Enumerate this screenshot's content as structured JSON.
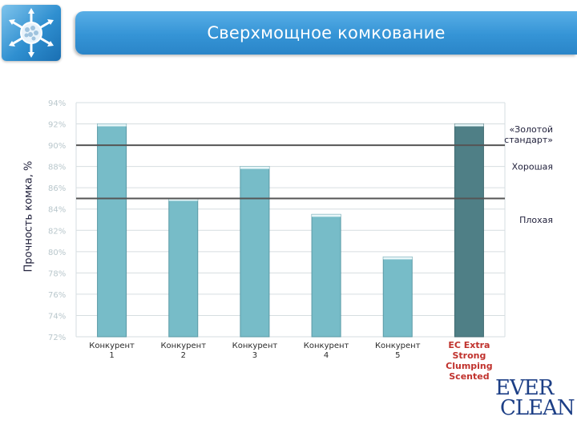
{
  "header": {
    "title": "Сверхмощное комкование",
    "logo_icon": "snowflake-molecule-icon"
  },
  "brand": {
    "line1": "EVER",
    "line2": "CLEAN"
  },
  "colors": {
    "title_bar": "#3594d6",
    "bar": "#77bcc8",
    "bar_highlight": "#4f7f86",
    "reference_line": "#555555",
    "tick_label": "#b9c7cc",
    "category_label": "#2b2b2b",
    "highlight_label": "#c0322d"
  },
  "chart_data": {
    "type": "bar",
    "ylabel": "Прочность комка, %",
    "xlabel": "",
    "ylim": [
      72,
      94
    ],
    "y_ticks": [
      "72%",
      "74%",
      "76%",
      "78%",
      "80%",
      "82%",
      "84%",
      "86%",
      "88%",
      "90%",
      "92%",
      "94%"
    ],
    "grid": true,
    "categories": [
      "Конкурент 1",
      "Конкурент 2",
      "Конкурент 3",
      "Конкурент 4",
      "Конкурент 5",
      "EC Extra Strong Clumping Scented"
    ],
    "category_lines": [
      [
        "Конкурент",
        "1"
      ],
      [
        "Конкурент",
        "2"
      ],
      [
        "Конкурент",
        "3"
      ],
      [
        "Конкурент",
        "4"
      ],
      [
        "Конкурент",
        "5"
      ],
      [
        "EC Extra",
        "Strong",
        "Clumping",
        "Scented"
      ]
    ],
    "values": [
      92,
      85,
      88,
      83.5,
      79.5,
      92
    ],
    "highlight_index": 5,
    "reference_lines": [
      {
        "value": 90,
        "label_lines": [
          "«Золотой",
          "стандарт»"
        ]
      },
      {
        "value": 85,
        "label_lines": [
          "Хорошая"
        ]
      }
    ],
    "zone_labels": [
      {
        "y_value": 88,
        "label": "Хорошая"
      },
      {
        "y_value": 83,
        "label": "Плохая"
      }
    ]
  }
}
